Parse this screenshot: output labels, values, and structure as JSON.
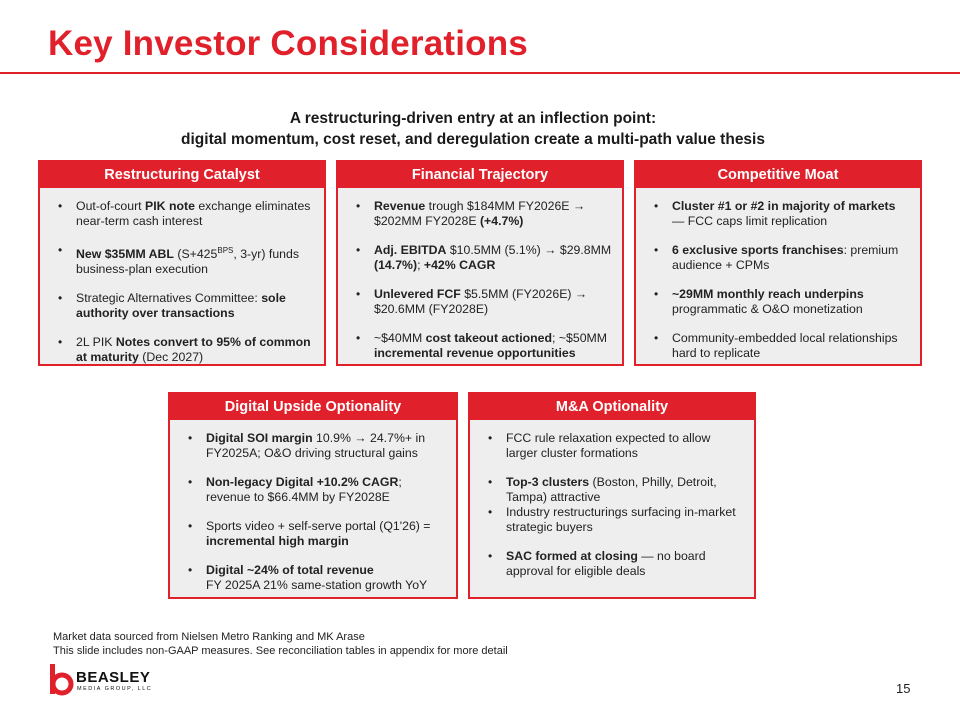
{
  "title": "Key Investor Considerations",
  "subtitle_line1": "A restructuring-driven entry at an inflection point:",
  "subtitle_line2": "digital momentum, cost reset, and deregulation create a multi-path value thesis",
  "cards": {
    "restructuring": {
      "header": "Restructuring Catalyst",
      "b1": {
        "pre": "Out-of-court ",
        "bold": "PIK note",
        "post": " exchange eliminates near-term cash interest"
      },
      "b2": {
        "bold": "New $35MM ABL",
        "pre2": " (S+425",
        "sup": "BPS",
        "post": ", 3-yr) funds business-plan execution"
      },
      "b3": {
        "pre": "Strategic Alternatives Committee: ",
        "bold": "sole authority over transactions"
      },
      "b4": {
        "pre": "2L PIK ",
        "bold": "Notes convert to 95% of common at maturity",
        "post": " (Dec 2027)"
      }
    },
    "financial": {
      "header": "Financial Trajectory",
      "b1": {
        "bold": "Revenue",
        "mid": " trough $184MM FY2026E → $202MM FY2028E ",
        "bold2": "(+4.7%)"
      },
      "b2": {
        "bold": "Adj. EBITDA",
        "mid": " $10.5MM (5.1%) → $29.8MM ",
        "bold2": "(14.7%)",
        "mid2": "; ",
        "bold3": "+42% CAGR"
      },
      "b3": {
        "bold": "Unlevered FCF",
        "post": " $5.5MM (FY2026E) → $20.6MM (FY2028E)"
      },
      "b4": {
        "pre": "~$40MM ",
        "bold": "cost takeout actioned",
        "mid": "; ~$50MM ",
        "bold2": "incremental revenue opportunities"
      }
    },
    "moat": {
      "header": "Competitive Moat",
      "b1": {
        "bold": "Cluster #1 or #2 in majority of markets",
        "post": " — FCC caps limit replication"
      },
      "b2": {
        "bold": "6 exclusive sports franchises",
        "post": ": premium audience + CPMs"
      },
      "b3": {
        "bold": "~29MM monthly reach underpins",
        "post": " programmatic & O&O monetization"
      },
      "b4": {
        "text": "Community-embedded local relationships hard to replicate"
      }
    },
    "digital": {
      "header": "Digital Upside Optionality",
      "b1": {
        "bold": "Digital SOI margin",
        "post": " 10.9% → 24.7%+ in FY2025A; O&O driving structural gains"
      },
      "b2": {
        "bold": "Non-legacy Digital +10.2% CAGR",
        "post": "; revenue to $66.4MM by FY2028E"
      },
      "b3": {
        "pre": "Sports video + self-serve portal (Q1'26) = ",
        "bold": "incremental high margin"
      },
      "b4": {
        "bold": "Digital ~24% of total revenue",
        "post": "FY 2025A 21% same-station growth YoY"
      }
    },
    "ma": {
      "header": "M&A Optionality",
      "b1": {
        "text": "FCC rule relaxation expected to allow larger cluster formations"
      },
      "b2": {
        "bold": "Top-3 clusters",
        "post": " (Boston, Philly, Detroit, Tampa) attractive"
      },
      "b3": {
        "text": "Industry restructurings surfacing in-market strategic buyers"
      },
      "b4": {
        "bold": "SAC formed at closing",
        "post": " — no board approval for eligible deals"
      }
    }
  },
  "footnote_line1": "Market data sourced from Nielsen Metro Ranking and MK Arase",
  "footnote_line2": "This slide includes non-GAAP measures. See reconciliation tables in appendix for more detail",
  "logo": {
    "name": "BEASLEY",
    "tagline": "MEDIA GROUP, LLC"
  },
  "page_number": "15",
  "bullet_char": "•",
  "colors": {
    "accent": "#e0212b",
    "card_bg": "#eeeeee"
  }
}
